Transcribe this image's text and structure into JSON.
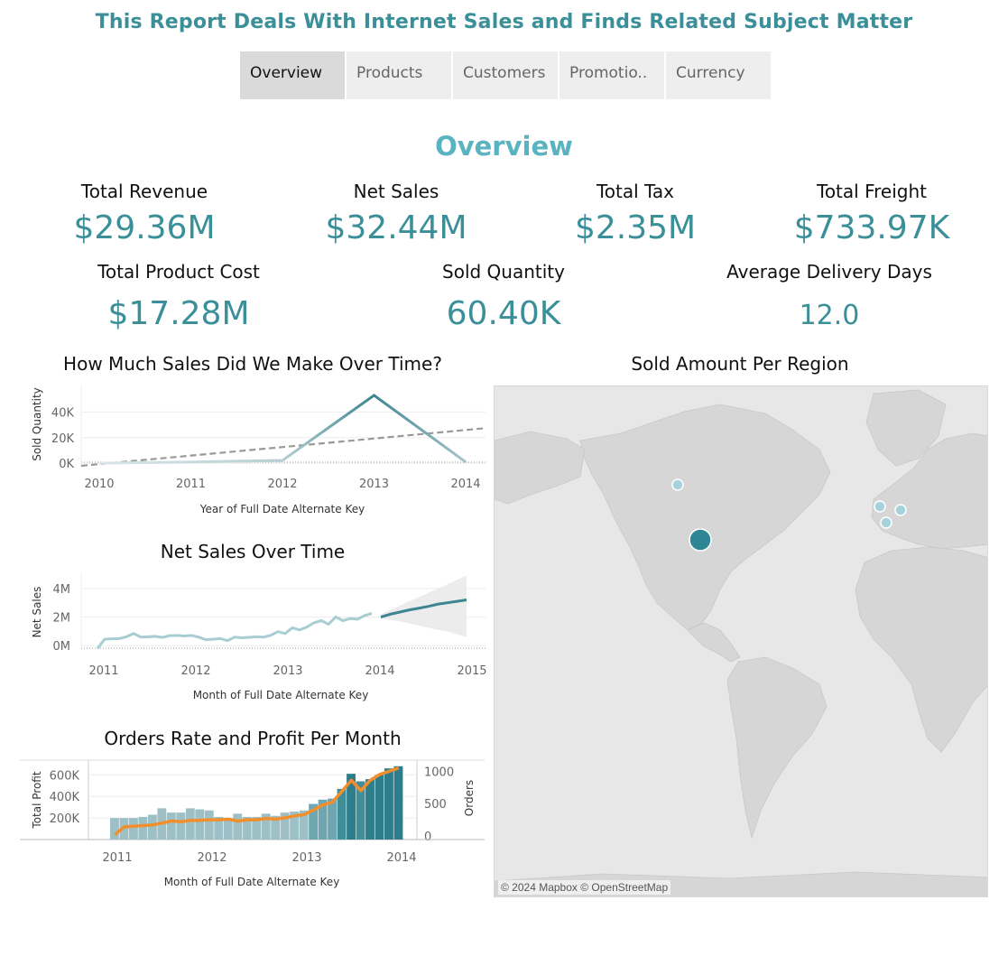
{
  "header": {
    "title": "This Report Deals With Internet Sales and Finds Related Subject Matter"
  },
  "tabs": [
    {
      "label": "Overview",
      "active": true
    },
    {
      "label": "Products",
      "active": false
    },
    {
      "label": "Customers",
      "active": false
    },
    {
      "label": "Promotio..",
      "active": false
    },
    {
      "label": "Currency",
      "active": false
    }
  ],
  "section": {
    "title": "Overview"
  },
  "kpis": {
    "total_revenue": {
      "label": "Total Revenue",
      "value": "$29.36M"
    },
    "net_sales": {
      "label": "Net Sales",
      "value": "$32.44M"
    },
    "total_tax": {
      "label": "Total Tax",
      "value": "$2.35M"
    },
    "total_freight": {
      "label": "Total Freight",
      "value": "$733.97K"
    },
    "total_product_cost": {
      "label": "Total Product Cost",
      "value": "$17.28M"
    },
    "sold_quantity": {
      "label": "Sold Quantity",
      "value": "60.40K"
    },
    "avg_delivery_days": {
      "label": "Average Delivery Days",
      "value": "12.0"
    }
  },
  "colors": {
    "accent": "#3a8f99",
    "section_title": "#5ab3c0",
    "bar_light": "#a8c8cc",
    "bar_dark": "#2e7d8a",
    "profit_line": "#f28e2b",
    "trend_line": "#999999",
    "map_land": "#d6d6d6",
    "map_water": "#e7e7e7"
  },
  "chart_data": [
    {
      "id": "sales_over_time",
      "type": "line",
      "title": "How Much Sales Did We Make Over Time?",
      "xlabel": "Year of Full Date Alternate Key",
      "ylabel": "Sold Quantity",
      "x": [
        "2010",
        "2011",
        "2012",
        "2013",
        "2014"
      ],
      "series": [
        {
          "values": [
            14,
            1000,
            2200,
            53000,
            1000
          ]
        }
      ],
      "trend_line": {
        "values": [
          -2000,
          5200,
          12000,
          19000,
          26000
        ]
      },
      "y_ticks": [
        "0K",
        "20K",
        "40K"
      ],
      "ylim": [
        -2000,
        60000
      ]
    },
    {
      "id": "net_sales_over_time",
      "type": "line",
      "title": "Net Sales Over Time",
      "xlabel": "Month of Full Date Alternate Key",
      "ylabel": "Net Sales",
      "x_ticks": [
        "2011",
        "2012",
        "2013",
        "2014",
        "2015"
      ],
      "y_ticks": [
        "0M",
        "2M",
        "4M"
      ],
      "ylim": [
        -300000,
        5000000
      ],
      "actual": [
        0.45,
        0.45,
        0.48,
        0.5,
        0.62,
        0.85,
        0.6,
        0.62,
        0.65,
        0.58,
        0.7,
        0.72,
        0.68,
        0.72,
        0.6,
        0.42,
        0.45,
        0.5,
        0.35,
        0.6,
        0.55,
        0.58,
        0.62,
        0.6,
        0.72,
        0.98,
        0.85,
        1.25,
        1.1,
        1.3,
        1.6,
        1.75,
        1.5,
        2.0,
        1.75,
        1.9,
        1.85,
        2.1,
        2.25
      ],
      "forecast": [
        2.0,
        2.2,
        2.35,
        2.5,
        2.62,
        2.75,
        2.9,
        3.0,
        3.1,
        3.2
      ],
      "forecast_band": {
        "upper": [
          2.2,
          2.5,
          2.8,
          3.1,
          3.4,
          3.7,
          4.0,
          4.3,
          4.6,
          4.9
        ],
        "lower": [
          1.9,
          1.8,
          1.7,
          1.55,
          1.4,
          1.25,
          1.1,
          1.0,
          0.8,
          0.6
        ]
      }
    },
    {
      "id": "orders_rate_profit",
      "type": "bar",
      "title": "Orders Rate and Profit Per Month",
      "xlabel": "Month of Full Date Alternate Key",
      "ylabel": "Total Profit",
      "y2label": "Orders",
      "x_ticks": [
        "2011",
        "2012",
        "2013",
        "2014"
      ],
      "y_ticks": [
        "200K",
        "400K",
        "600K"
      ],
      "y2_ticks": [
        "0",
        "500",
        "1000"
      ],
      "ylim": [
        0,
        720000
      ],
      "y2lim": [
        0,
        1200
      ],
      "bars_profit": [
        200000,
        200000,
        200000,
        210000,
        230000,
        290000,
        250000,
        250000,
        290000,
        280000,
        270000,
        210000,
        180000,
        240000,
        210000,
        210000,
        240000,
        220000,
        250000,
        260000,
        270000,
        330000,
        370000,
        380000,
        470000,
        610000,
        540000,
        560000,
        600000,
        660000,
        680000
      ],
      "line_orders": [
        20,
        140,
        150,
        160,
        170,
        200,
        230,
        220,
        240,
        240,
        250,
        250,
        260,
        230,
        250,
        250,
        270,
        260,
        280,
        310,
        330,
        400,
        480,
        520,
        690,
        860,
        700,
        860,
        950,
        1000,
        1050
      ]
    },
    {
      "id": "sold_amount_per_region",
      "type": "map",
      "title": "Sold Amount Per Region",
      "points": [
        {
          "label": "Canada",
          "size": "small"
        },
        {
          "label": "United States",
          "size": "large"
        },
        {
          "label": "United Kingdom",
          "size": "small"
        },
        {
          "label": "Germany",
          "size": "small"
        },
        {
          "label": "France",
          "size": "small"
        }
      ],
      "attribution": "© 2024 Mapbox © OpenStreetMap"
    }
  ]
}
